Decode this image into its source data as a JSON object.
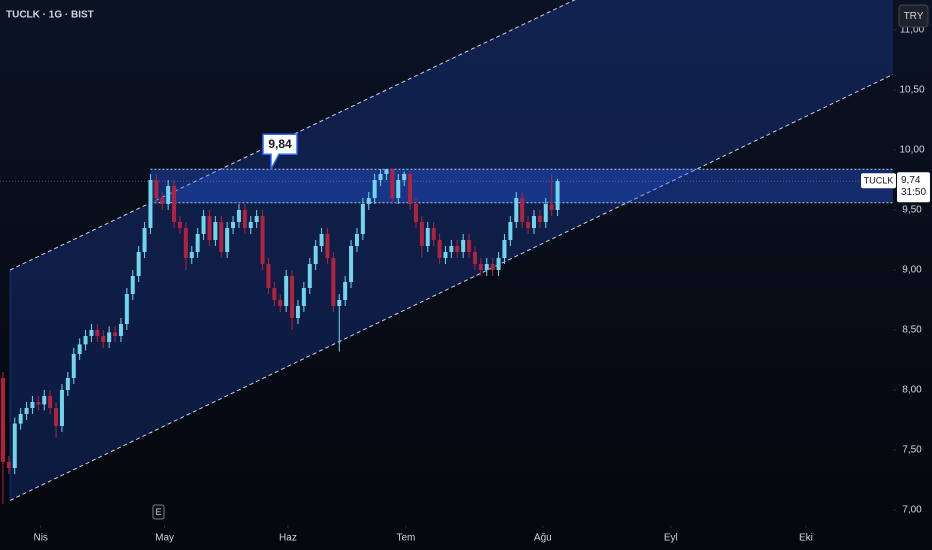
{
  "chart_data": {
    "type": "candlestick",
    "title": "TUCLK · 1G · BIST",
    "currency": "TRY",
    "symbol": "TUCLK",
    "last_value": 9.74,
    "last_label": "9,74",
    "countdown": "31:50",
    "event_label": "E",
    "up_color": "#6fd6ec",
    "down_color": "#b3223d",
    "open": [
      8.1,
      7.4,
      7.35,
      7.72,
      7.8,
      7.85,
      7.9,
      7.88,
      7.95,
      7.85,
      7.7,
      8.0,
      8.1,
      8.3,
      8.38,
      8.45,
      8.5,
      8.45,
      8.4,
      8.48,
      8.45,
      8.55,
      8.8,
      8.95,
      9.15,
      9.35,
      9.75,
      9.6,
      9.55,
      9.7,
      9.4,
      9.35,
      9.1,
      9.15,
      9.3,
      9.45,
      9.25,
      9.4,
      9.15,
      9.35,
      9.4,
      9.5,
      9.35,
      9.4,
      9.45,
      9.05,
      8.85,
      8.75,
      8.7,
      8.95,
      8.6,
      8.7,
      8.85,
      9.05,
      9.2,
      9.3,
      9.1,
      8.7,
      8.75,
      8.9,
      9.2,
      9.3,
      9.55,
      9.6,
      9.75,
      9.8,
      9.84,
      9.6,
      9.75,
      9.8,
      9.55,
      9.4,
      9.2,
      9.35,
      9.25,
      9.1,
      9.15,
      9.2,
      9.15,
      9.25,
      9.15,
      9.05,
      9.0,
      9.05,
      9.0,
      9.1,
      9.25,
      9.4,
      9.6,
      9.4,
      9.35,
      9.45,
      9.4,
      9.55,
      9.5
    ],
    "high": [
      8.15,
      7.45,
      7.77,
      7.85,
      7.9,
      7.95,
      7.95,
      8.0,
      8.0,
      7.9,
      8.05,
      8.15,
      8.35,
      8.43,
      8.5,
      8.55,
      8.55,
      8.5,
      8.53,
      8.53,
      8.6,
      8.85,
      9.0,
      9.2,
      9.4,
      9.8,
      9.8,
      9.65,
      9.75,
      9.75,
      9.45,
      9.4,
      9.2,
      9.35,
      9.5,
      9.5,
      9.45,
      9.45,
      9.4,
      9.45,
      9.55,
      9.55,
      9.45,
      9.5,
      9.5,
      9.1,
      8.9,
      8.8,
      9.0,
      9.0,
      8.75,
      8.9,
      9.1,
      9.25,
      9.35,
      9.35,
      9.15,
      8.8,
      8.95,
      9.25,
      9.35,
      9.6,
      9.65,
      9.8,
      9.84,
      9.84,
      9.82,
      9.8,
      9.82,
      9.82,
      9.6,
      9.45,
      9.4,
      9.4,
      9.3,
      9.2,
      9.25,
      9.25,
      9.3,
      9.3,
      9.2,
      9.1,
      9.1,
      9.1,
      9.15,
      9.3,
      9.45,
      9.65,
      9.65,
      9.45,
      9.5,
      9.5,
      9.6,
      9.8,
      9.76
    ],
    "low": [
      7.05,
      7.3,
      7.3,
      7.67,
      7.75,
      7.8,
      7.83,
      7.83,
      7.8,
      7.6,
      7.65,
      7.95,
      8.05,
      8.25,
      8.33,
      8.4,
      8.4,
      8.35,
      8.35,
      8.4,
      8.4,
      8.5,
      8.75,
      8.9,
      9.1,
      9.3,
      9.55,
      9.5,
      9.5,
      9.35,
      9.3,
      9.0,
      9.05,
      9.1,
      9.25,
      9.2,
      9.2,
      9.1,
      9.1,
      9.3,
      9.35,
      9.3,
      9.3,
      9.35,
      9.0,
      8.8,
      8.7,
      8.65,
      8.65,
      8.5,
      8.55,
      8.65,
      8.8,
      9.0,
      9.15,
      9.05,
      8.65,
      8.32,
      8.7,
      8.85,
      9.15,
      9.25,
      9.5,
      9.55,
      9.7,
      9.75,
      9.55,
      9.55,
      9.7,
      9.5,
      9.35,
      9.1,
      9.15,
      9.2,
      9.05,
      9.05,
      9.1,
      9.1,
      9.1,
      9.1,
      9.0,
      8.95,
      8.95,
      8.95,
      8.95,
      9.05,
      9.2,
      9.35,
      9.35,
      9.3,
      9.3,
      9.35,
      9.35,
      9.45,
      9.45
    ],
    "close": [
      7.4,
      7.35,
      7.72,
      7.8,
      7.85,
      7.9,
      7.88,
      7.95,
      7.85,
      7.7,
      8.0,
      8.1,
      8.3,
      8.38,
      8.45,
      8.5,
      8.45,
      8.4,
      8.48,
      8.45,
      8.55,
      8.8,
      8.95,
      9.15,
      9.35,
      9.75,
      9.6,
      9.55,
      9.7,
      9.4,
      9.35,
      9.1,
      9.15,
      9.3,
      9.45,
      9.25,
      9.4,
      9.15,
      9.35,
      9.4,
      9.5,
      9.35,
      9.4,
      9.45,
      9.05,
      8.85,
      8.75,
      8.7,
      8.95,
      8.6,
      8.7,
      8.85,
      9.05,
      9.2,
      9.3,
      9.1,
      8.7,
      8.75,
      8.9,
      9.2,
      9.3,
      9.55,
      9.6,
      9.75,
      9.8,
      9.84,
      9.6,
      9.75,
      9.8,
      9.55,
      9.4,
      9.2,
      9.35,
      9.25,
      9.1,
      9.15,
      9.2,
      9.15,
      9.25,
      9.15,
      9.05,
      9.0,
      9.05,
      9.0,
      9.1,
      9.25,
      9.4,
      9.6,
      9.4,
      9.35,
      9.45,
      9.4,
      9.55,
      9.5,
      9.74
    ],
    "xlim": [
      -0.5,
      150.85
    ],
    "xticks": [
      {
        "value": 6.4,
        "label": "Nis"
      },
      {
        "value": 27.4,
        "label": "May"
      },
      {
        "value": 48.3,
        "label": "Haz"
      },
      {
        "value": 68.3,
        "label": "Tem"
      },
      {
        "value": 91.5,
        "label": "Ağu"
      },
      {
        "value": 113.2,
        "label": "Eyl"
      },
      {
        "value": 136.1,
        "label": "Eki"
      }
    ],
    "ylim": [
      6.875,
      11.25
    ],
    "yticks": [
      {
        "value": 7,
        "label": "7,00"
      },
      {
        "value": 7.5,
        "label": "7,50"
      },
      {
        "value": 8,
        "label": "8,00"
      },
      {
        "value": 8.5,
        "label": "8,50"
      },
      {
        "value": 9,
        "label": "9,00"
      },
      {
        "value": 9.5,
        "label": "9,50"
      },
      {
        "value": 10,
        "label": "10,00"
      },
      {
        "value": 10.5,
        "label": "10,50"
      },
      {
        "value": 11,
        "label": "11,00"
      }
    ],
    "channel": {
      "upper": [
        [
          1.2,
          9.0
        ],
        [
          150.85,
          12.52
        ]
      ],
      "lower": [
        [
          1.2,
          7.08
        ],
        [
          150.85,
          10.63
        ]
      ]
    },
    "range": {
      "start": 25,
      "high": 9.84,
      "high_label": "9,84",
      "low": 9.56
    }
  }
}
